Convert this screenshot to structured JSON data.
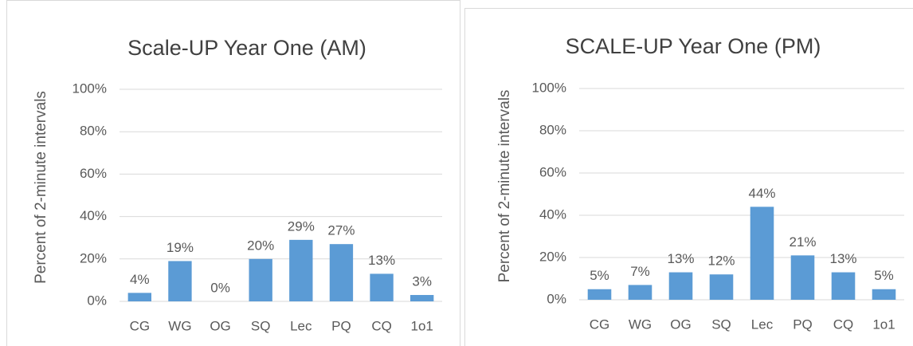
{
  "chart_data": [
    {
      "type": "bar",
      "title": "Scale-UP Year One (AM)",
      "y_label": "Percent of 2-minute intervals",
      "categories": [
        "CG",
        "WG",
        "OG",
        "SQ",
        "Lec",
        "PQ",
        "CQ",
        "1o1"
      ],
      "values": [
        4,
        19,
        0,
        20,
        29,
        27,
        13,
        3
      ],
      "value_labels": [
        "4%",
        "19%",
        "0%",
        "20%",
        "29%",
        "27%",
        "13%",
        "3%"
      ],
      "color": "#5b9bd5",
      "ylim": [
        0,
        100
      ],
      "yticks": [
        {
          "value": 0,
          "label": "0%"
        },
        {
          "value": 20,
          "label": "20%"
        },
        {
          "value": 40,
          "label": "40%"
        },
        {
          "value": 60,
          "label": "60%"
        },
        {
          "value": 80,
          "label": "80%"
        },
        {
          "value": 100,
          "label": "100%"
        }
      ],
      "grid": true
    },
    {
      "type": "bar",
      "title": "SCALE-UP Year One (PM)",
      "y_label": "Percent of 2-minute intervals",
      "categories": [
        "CG",
        "WG",
        "OG",
        "SQ",
        "Lec",
        "PQ",
        "CQ",
        "1o1"
      ],
      "values": [
        5,
        7,
        13,
        12,
        44,
        21,
        13,
        5
      ],
      "value_labels": [
        "5%",
        "7%",
        "13%",
        "12%",
        "44%",
        "21%",
        "13%",
        "5%"
      ],
      "color": "#5b9bd5",
      "ylim": [
        0,
        100
      ],
      "yticks": [
        {
          "value": 0,
          "label": "0%"
        },
        {
          "value": 20,
          "label": "20%"
        },
        {
          "value": 40,
          "label": "40%"
        },
        {
          "value": 60,
          "label": "60%"
        },
        {
          "value": 80,
          "label": "80%"
        },
        {
          "value": 100,
          "label": "100%"
        }
      ],
      "grid": true
    }
  ]
}
